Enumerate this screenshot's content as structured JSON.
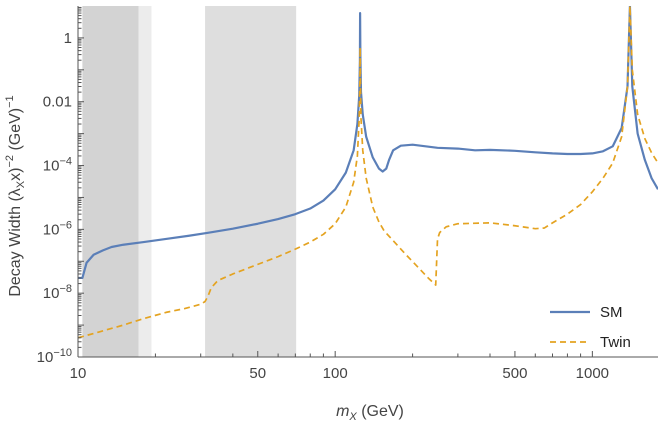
{
  "chart_data": {
    "type": "line",
    "xlabel": {
      "var": "m",
      "sub": "X",
      "unit": " (GeV)"
    },
    "ylabel": {
      "main": "Decay Width (λ",
      "sub": "X",
      "mid": "x)",
      "sup1": "−2",
      "unit": " (GeV)",
      "sup2": "−1"
    },
    "x_scale": "log",
    "y_scale": "log",
    "xlim": [
      10,
      1800
    ],
    "ylim": [
      1e-10,
      10
    ],
    "x_ticks": [
      {
        "value": 10,
        "label": "10"
      },
      {
        "value": 50,
        "label": "50"
      },
      {
        "value": 100,
        "label": "100"
      },
      {
        "value": 500,
        "label": "500"
      },
      {
        "value": 1000,
        "label": "1000"
      }
    ],
    "y_ticks": [
      {
        "value": 1,
        "label": "1"
      },
      {
        "value": 0.01,
        "label": "0.01"
      },
      {
        "value": 0.0001,
        "base": "10",
        "exp": "−4"
      },
      {
        "value": 1e-06,
        "base": "10",
        "exp": "−6"
      },
      {
        "value": 1e-08,
        "base": "10",
        "exp": "−8"
      },
      {
        "value": 1e-10,
        "base": "10",
        "exp": "−10"
      }
    ],
    "shaded_bands": [
      {
        "x0": 10.4,
        "x1": 17.2,
        "color": "#d3d3d3"
      },
      {
        "x0": 17.2,
        "x1": 19.3,
        "color": "#ececec"
      },
      {
        "x0": 31.2,
        "x1": 70.5,
        "color": "#dedede"
      }
    ],
    "legend_position": "bottom-right",
    "series": [
      {
        "name": "SM",
        "color": "#5b7fb8",
        "dash": "none",
        "points": [
          [
            10,
            3e-08
          ],
          [
            10.4,
            3e-08
          ],
          [
            10.8,
            9e-08
          ],
          [
            11.5,
            1.6e-07
          ],
          [
            12.5,
            2.2e-07
          ],
          [
            13.5,
            2.8e-07
          ],
          [
            15,
            3.3e-07
          ],
          [
            18,
            4e-07
          ],
          [
            22,
            5e-07
          ],
          [
            27,
            6.3e-07
          ],
          [
            32,
            7.8e-07
          ],
          [
            40,
            1.05e-06
          ],
          [
            50,
            1.5e-06
          ],
          [
            60,
            2.1e-06
          ],
          [
            70,
            3e-06
          ],
          [
            80,
            4.5e-06
          ],
          [
            90,
            8e-06
          ],
          [
            100,
            1.8e-05
          ],
          [
            110,
            6e-05
          ],
          [
            118,
            0.0003
          ],
          [
            122,
            0.002
          ],
          [
            124,
            0.015
          ],
          [
            124.8,
            0.2
          ],
          [
            125,
            6
          ],
          [
            125.3,
            0.3
          ],
          [
            126,
            0.02
          ],
          [
            128,
            0.004
          ],
          [
            132,
            0.0008
          ],
          [
            140,
            0.00018
          ],
          [
            148,
            8e-05
          ],
          [
            153,
            6.5e-05
          ],
          [
            158,
            8e-05
          ],
          [
            162,
            0.00015
          ],
          [
            168,
            0.0003
          ],
          [
            180,
            0.00042
          ],
          [
            200,
            0.00045
          ],
          [
            250,
            0.00036
          ],
          [
            300,
            0.00034
          ],
          [
            350,
            0.0003
          ],
          [
            400,
            0.00031
          ],
          [
            500,
            0.00029
          ],
          [
            600,
            0.00026
          ],
          [
            700,
            0.00024
          ],
          [
            800,
            0.00023
          ],
          [
            900,
            0.00023
          ],
          [
            1000,
            0.00024
          ],
          [
            1100,
            0.00028
          ],
          [
            1200,
            0.0004
          ],
          [
            1300,
            0.0015
          ],
          [
            1370,
            0.03
          ],
          [
            1400,
            10
          ],
          [
            1430,
            0.03
          ],
          [
            1500,
            0.001
          ],
          [
            1600,
            0.00015
          ],
          [
            1700,
            4e-05
          ],
          [
            1800,
            1.8e-05
          ]
        ]
      },
      {
        "name": "Twin",
        "color": "#e4a321",
        "dash": "6,4",
        "points": [
          [
            10,
            4e-10
          ],
          [
            12,
            6e-10
          ],
          [
            15,
            1e-09
          ],
          [
            18,
            1.6e-09
          ],
          [
            22,
            2.5e-09
          ],
          [
            26,
            3.3e-09
          ],
          [
            30,
            4.5e-09
          ],
          [
            31.2,
            5.5e-09
          ],
          [
            32,
            8e-09
          ],
          [
            33,
            1.5e-08
          ],
          [
            35,
            2.5e-08
          ],
          [
            40,
            4e-08
          ],
          [
            50,
            8e-08
          ],
          [
            60,
            1.4e-07
          ],
          [
            70,
            2.4e-07
          ],
          [
            80,
            4e-07
          ],
          [
            90,
            7e-07
          ],
          [
            100,
            1.5e-06
          ],
          [
            110,
            5e-06
          ],
          [
            118,
            3e-05
          ],
          [
            122,
            0.0002
          ],
          [
            124,
            0.003
          ],
          [
            124.8,
            0.05
          ],
          [
            125,
            0.5
          ],
          [
            125.3,
            0.05
          ],
          [
            126,
            0.003
          ],
          [
            128,
            0.0003
          ],
          [
            132,
            4e-05
          ],
          [
            140,
            5e-06
          ],
          [
            148,
            1.7e-06
          ],
          [
            155,
            9e-07
          ],
          [
            170,
            4e-07
          ],
          [
            190,
            1.5e-07
          ],
          [
            210,
            6.5e-08
          ],
          [
            230,
            3e-08
          ],
          [
            246,
            1.8e-08
          ],
          [
            250,
            5e-07
          ],
          [
            255,
            8e-07
          ],
          [
            270,
            1.2e-06
          ],
          [
            300,
            1.5e-06
          ],
          [
            400,
            1.6e-06
          ],
          [
            500,
            1.3e-06
          ],
          [
            600,
            1.05e-06
          ],
          [
            650,
            1.1e-06
          ],
          [
            700,
            1.6e-06
          ],
          [
            800,
            3e-06
          ],
          [
            900,
            6e-06
          ],
          [
            1000,
            1.5e-05
          ],
          [
            1100,
            4e-05
          ],
          [
            1200,
            0.00012
          ],
          [
            1300,
            0.0008
          ],
          [
            1370,
            0.03
          ],
          [
            1400,
            10
          ],
          [
            1430,
            0.1
          ],
          [
            1500,
            0.004
          ],
          [
            1600,
            0.0007
          ],
          [
            1700,
            0.00025
          ],
          [
            1800,
            0.00012
          ]
        ]
      }
    ]
  }
}
